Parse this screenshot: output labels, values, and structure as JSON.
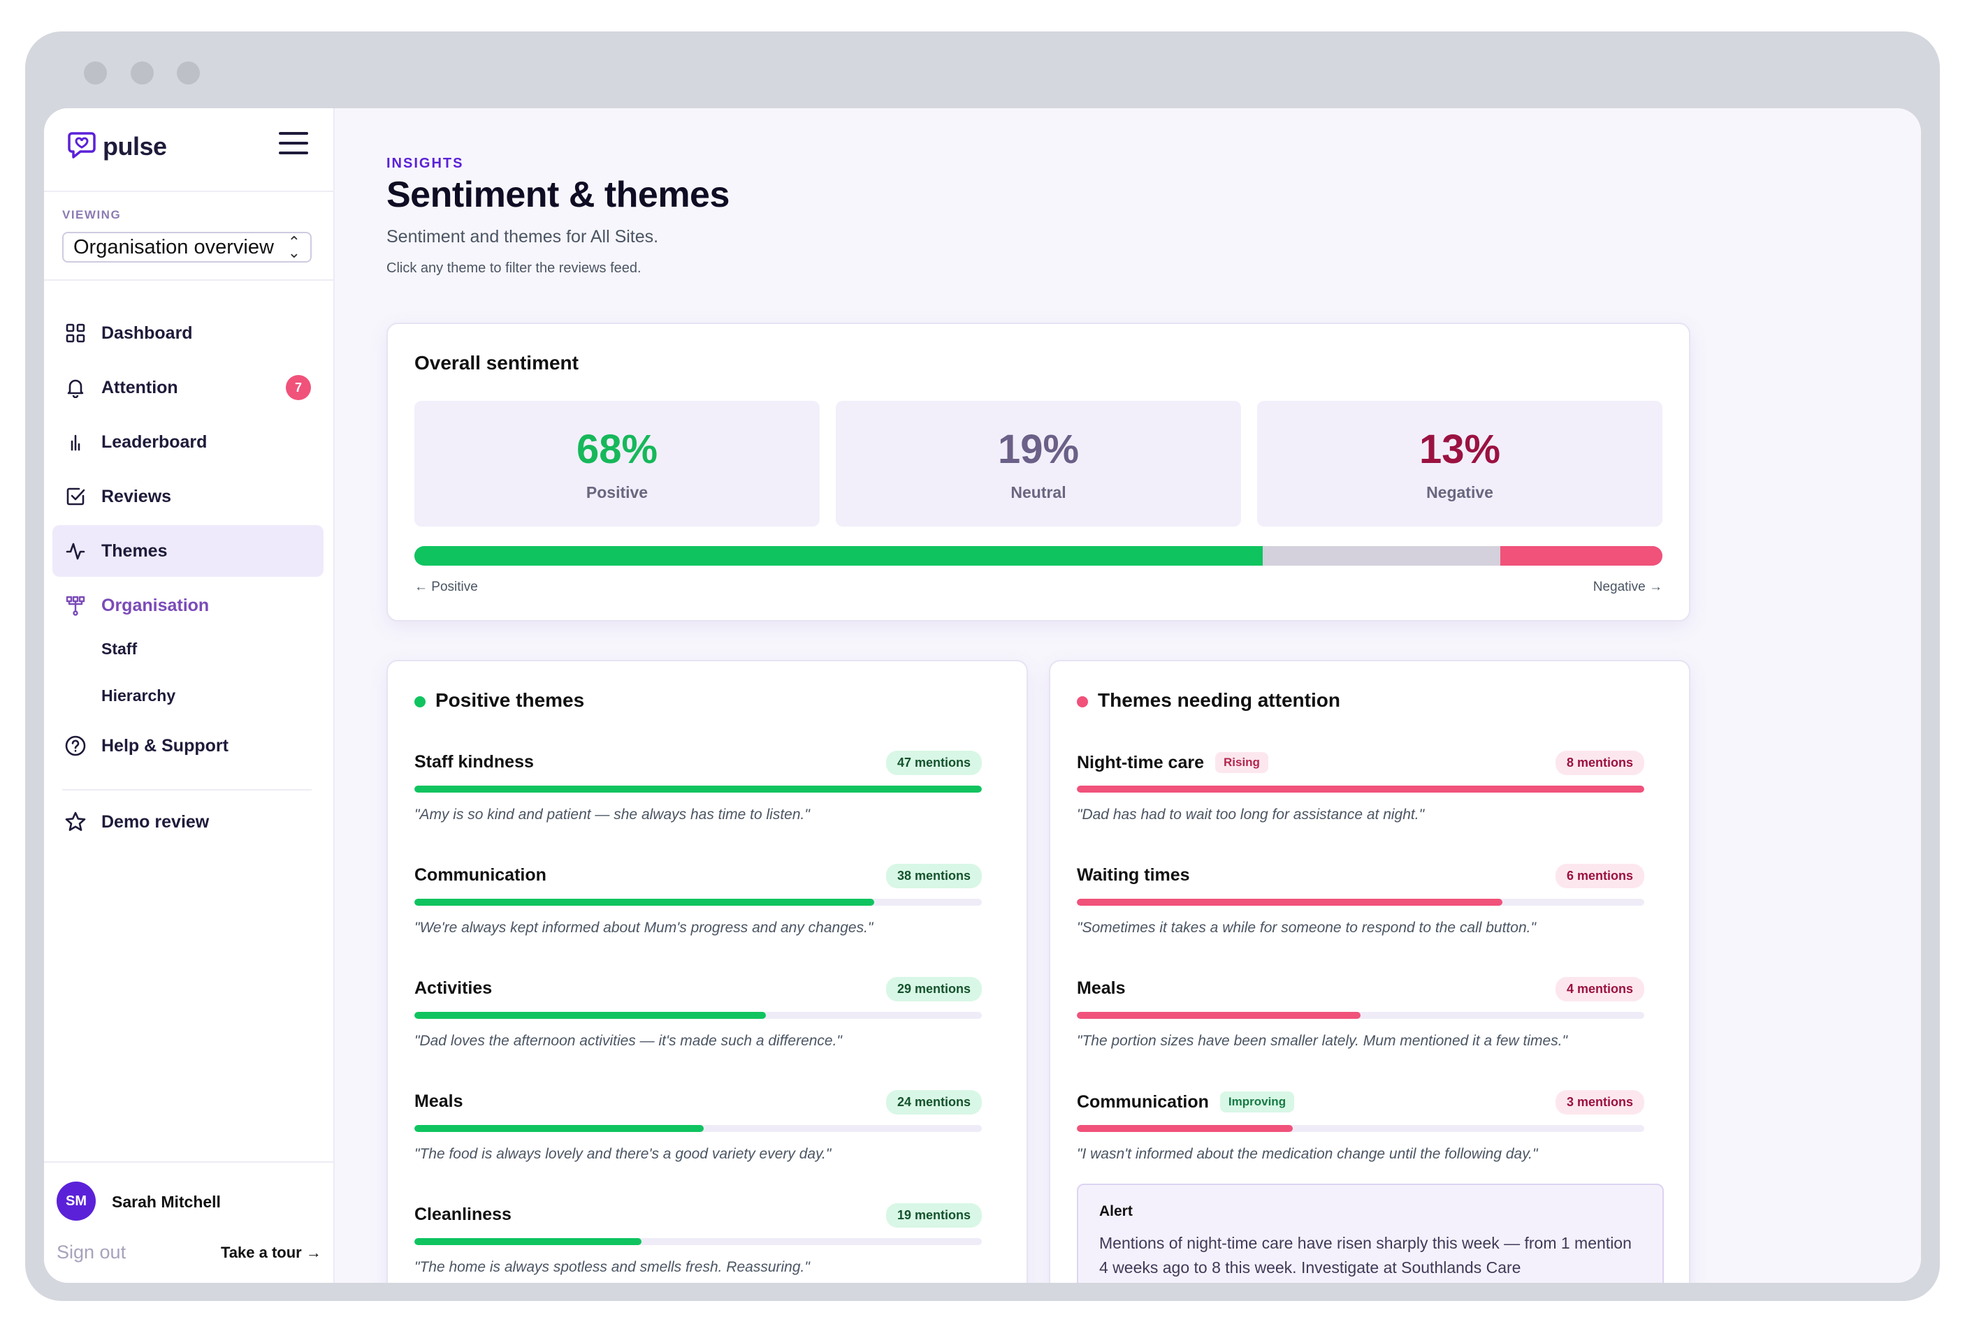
{
  "brand": {
    "name": "pulse"
  },
  "sidebar": {
    "viewing_label": "VIEWING",
    "viewing_value": "Organisation overview",
    "items": [
      {
        "label": "Dashboard",
        "icon": "grid-icon"
      },
      {
        "label": "Attention",
        "icon": "bell-icon",
        "badge": "7"
      },
      {
        "label": "Leaderboard",
        "icon": "bar-chart-icon"
      },
      {
        "label": "Reviews",
        "icon": "checkbox-icon"
      },
      {
        "label": "Themes",
        "icon": "activity-icon",
        "active": true
      },
      {
        "label": "Organisation",
        "icon": "org-chart-icon"
      },
      {
        "label": "Help & Support",
        "icon": "help-circle-icon"
      },
      {
        "label": "Demo review",
        "icon": "star-icon"
      }
    ],
    "sub_items": [
      "Staff",
      "Hierarchy"
    ],
    "user": {
      "initials": "SM",
      "name": "Sarah Mitchell"
    },
    "sign_out": "Sign out",
    "take_tour": "Take a tour →"
  },
  "header": {
    "eyebrow": "INSIGHTS",
    "title": "Sentiment & themes",
    "subtitle": "Sentiment and themes for All Sites.",
    "hint": "Click any theme to filter the reviews feed."
  },
  "overall": {
    "title": "Overall sentiment",
    "positive": {
      "value": "68%",
      "label": "Positive",
      "pct": 68
    },
    "neutral": {
      "value": "19%",
      "label": "Neutral",
      "pct": 19
    },
    "negative": {
      "value": "13%",
      "label": "Negative",
      "pct": 13
    },
    "left_label": "← Positive",
    "right_label": "Negative →"
  },
  "positive_themes": {
    "title": "Positive themes",
    "items": [
      {
        "name": "Staff kindness",
        "mentions": "47 mentions",
        "fill": 1.0,
        "quote": "\"Amy is so kind and patient — she always has time to listen.\""
      },
      {
        "name": "Communication",
        "mentions": "38 mentions",
        "fill": 0.81,
        "quote": "\"We're always kept informed about Mum's progress and any changes.\""
      },
      {
        "name": "Activities",
        "mentions": "29 mentions",
        "fill": 0.62,
        "quote": "\"Dad loves the afternoon activities — it's made such a difference.\""
      },
      {
        "name": "Meals",
        "mentions": "24 mentions",
        "fill": 0.51,
        "quote": "\"The food is always lovely and there's a good variety every day.\""
      },
      {
        "name": "Cleanliness",
        "mentions": "19 mentions",
        "fill": 0.4,
        "quote": "\"The home is always spotless and smells fresh. Reassuring.\""
      }
    ]
  },
  "attention_themes": {
    "title": "Themes needing attention",
    "items": [
      {
        "name": "Night-time care",
        "tag": "Rising",
        "mentions": "8 mentions",
        "fill": 1.0,
        "quote": "\"Dad has had to wait too long for assistance at night.\""
      },
      {
        "name": "Waiting times",
        "tag": "",
        "mentions": "6 mentions",
        "fill": 0.75,
        "quote": "\"Sometimes it takes a while for someone to respond to the call button.\""
      },
      {
        "name": "Meals",
        "tag": "",
        "mentions": "4 mentions",
        "fill": 0.5,
        "quote": "\"The portion sizes have been smaller lately. Mum mentioned it a few times.\""
      },
      {
        "name": "Communication",
        "tag": "Improving",
        "mentions": "3 mentions",
        "fill": 0.38,
        "quote": "\"I wasn't informed about the medication change until the following day.\""
      }
    ],
    "alert_title": "Alert",
    "alert_text": "Mentions of night-time care have risen sharply this week — from 1 mention 4 weeks ago to 8 this week. Investigate at Southlands Care"
  },
  "colors": {
    "accent": "#5b21d8",
    "positive": "#0fc45f",
    "neutral": "#d4d0dc",
    "negative": "#f0527a",
    "positive_text": "#16b85a",
    "neutral_text": "#6b6087",
    "negative_text": "#9b1240"
  }
}
